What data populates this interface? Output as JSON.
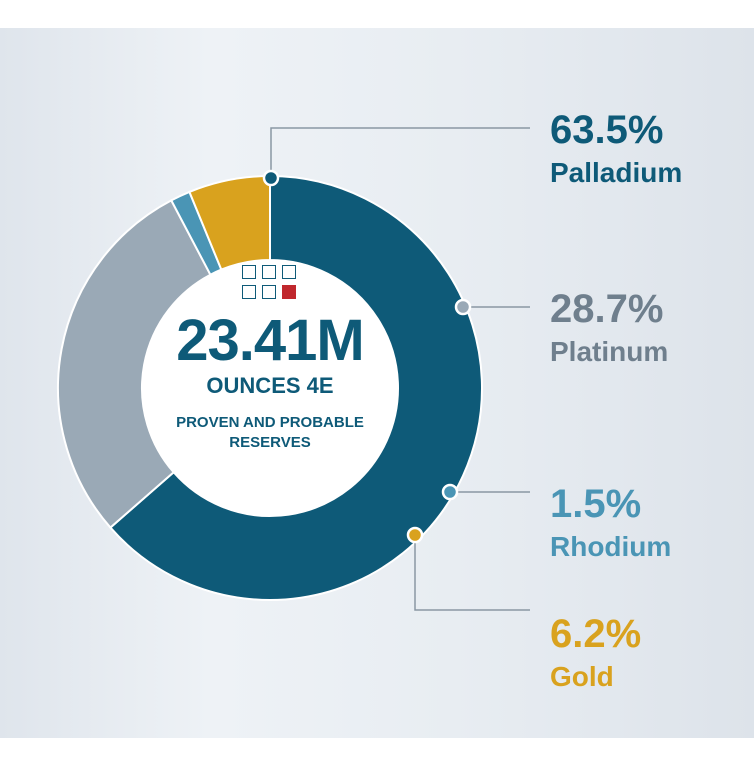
{
  "chart_data": {
    "type": "pie",
    "categories": [
      "Palladium",
      "Platinum",
      "Rhodium",
      "Gold"
    ],
    "values": [
      63.5,
      28.7,
      1.5,
      6.2
    ],
    "value_labels": [
      "63.5%",
      "28.7%",
      "1.5%",
      "6.2%"
    ],
    "colors": [
      "#0e5a78",
      "#9aa9b6",
      "#4a95b5",
      "#d9a21e"
    ],
    "label_colors": [
      "#0e5a78",
      "#6f7f8d",
      "#4a95b5",
      "#d9a21e"
    ],
    "donut": true,
    "start_angle_deg": 0,
    "direction": "clockwise",
    "center": {
      "value": "23.41M",
      "unit": "OUNCES 4E",
      "caption": "PROVEN AND PROBABLE RESERVES"
    }
  },
  "icon": {
    "name": "grid-squares-icon",
    "highlight_color": "#c0272d"
  }
}
